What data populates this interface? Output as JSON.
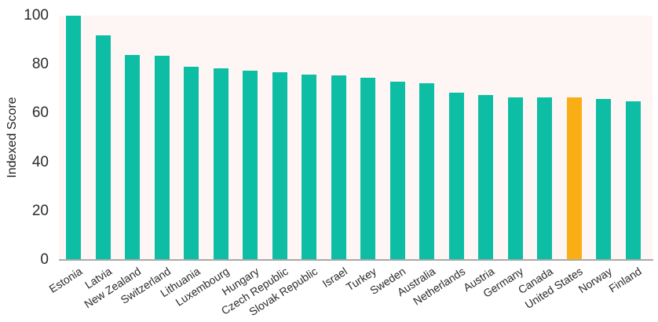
{
  "chart_data": {
    "type": "bar",
    "title": "",
    "xlabel": "",
    "ylabel": "Indexed Score",
    "ylim": [
      0,
      100
    ],
    "yticks": [
      0,
      20,
      40,
      60,
      80,
      100
    ],
    "grid": false,
    "legend": "none",
    "plot_background": "#fdf6f4",
    "bar_color": "#0dbea5",
    "highlight_color": "#faae16",
    "highlight_category": "United States",
    "axis_line_color": "#a9a9a9",
    "text_color": "#2b2b2b",
    "categories": [
      "Estonia",
      "Latvia",
      "New Zealand",
      "Switzerland",
      "Lithuania",
      "Luxembourg",
      "Hungary",
      "Czech Republic",
      "Slovak Republic",
      "Israel",
      "Turkey",
      "Sweden",
      "Australia",
      "Netherlands",
      "Austria",
      "Germany",
      "Canada",
      "United States",
      "Norway",
      "Finland"
    ],
    "values": [
      100,
      92,
      84,
      83.5,
      79,
      78.5,
      77.5,
      77,
      76,
      75.5,
      74.5,
      73,
      72.5,
      68.5,
      67.5,
      66.5,
      66.5,
      66.5,
      66,
      65
    ]
  }
}
